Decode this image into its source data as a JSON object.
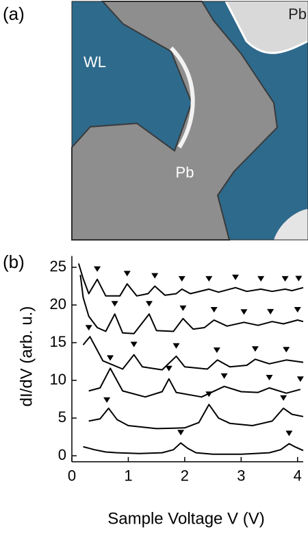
{
  "panel_a": {
    "label": "(a)",
    "texts": [
      "WL",
      "Pb",
      "Pb"
    ]
  },
  "chart_data": {
    "type": "line",
    "panel_label": "(b)",
    "xlabel": "Sample Voltage V (V)",
    "ylabel": "dI/dV (arb. u.)",
    "xlim": [
      0,
      4.1
    ],
    "ylim": [
      -0.8,
      26.5
    ],
    "xticks": [
      0,
      1,
      2,
      3,
      4
    ],
    "yticks": [
      0,
      5,
      10,
      15,
      20,
      25
    ],
    "series": [
      {
        "color": "#000000",
        "x": [
          0.2,
          0.4,
          0.6,
          0.8,
          1.2,
          1.6,
          1.8,
          1.93,
          2.05,
          2.2,
          2.5,
          3.0,
          3.5,
          3.7,
          3.85,
          3.95,
          4.1
        ],
        "values": [
          1.2,
          0.8,
          0.5,
          0.4,
          0.3,
          0.4,
          0.8,
          1.7,
          1.0,
          0.4,
          0.2,
          0.2,
          0.4,
          0.8,
          1.6,
          1.2,
          0.7
        ],
        "peaks": [
          1.93,
          3.85
        ]
      },
      {
        "color": "#000000",
        "x": [
          0.3,
          0.5,
          0.65,
          0.8,
          1.0,
          1.5,
          2.0,
          2.25,
          2.43,
          2.6,
          2.8,
          3.2,
          3.55,
          3.75,
          3.9,
          4.1
        ],
        "values": [
          4.6,
          4.9,
          6.3,
          4.8,
          4.0,
          3.6,
          3.7,
          4.4,
          6.8,
          5.0,
          4.3,
          4.0,
          4.6,
          6.3,
          5.5,
          5.2
        ],
        "peaks": [
          0.62,
          2.43,
          3.75
        ]
      },
      {
        "color": "#000000",
        "x": [
          0.3,
          0.5,
          0.68,
          0.9,
          1.3,
          1.6,
          1.72,
          1.85,
          2.3,
          2.7,
          3.0,
          3.3,
          3.5,
          3.8,
          4.05
        ],
        "values": [
          8.6,
          9.0,
          11.6,
          8.6,
          7.8,
          8.5,
          10.2,
          8.4,
          7.8,
          9.2,
          8.5,
          8.4,
          9.0,
          8.3,
          8.8
        ],
        "peaks": [
          0.68,
          1.72,
          2.7,
          3.5,
          4.05
        ]
      },
      {
        "color": "#000000",
        "x": [
          0.2,
          0.32,
          0.55,
          0.9,
          1.1,
          1.25,
          1.6,
          1.85,
          2.0,
          2.4,
          2.58,
          2.8,
          3.1,
          3.25,
          3.5,
          3.8,
          4.1
        ],
        "values": [
          14.7,
          15.8,
          12.6,
          11.5,
          13.4,
          11.8,
          11.4,
          13.2,
          11.8,
          11.5,
          12.7,
          11.8,
          12.0,
          12.8,
          12.2,
          12.7,
          12.4
        ],
        "peaks": [
          0.3,
          1.1,
          1.85,
          2.57,
          3.25,
          3.8
        ]
      },
      {
        "color": "#000000",
        "x": [
          0.15,
          0.2,
          0.3,
          0.45,
          0.6,
          0.76,
          0.9,
          1.1,
          1.37,
          1.5,
          1.8,
          1.97,
          2.15,
          2.35,
          2.52,
          2.75,
          3.05,
          3.3,
          3.55,
          3.75,
          4.0,
          4.1
        ],
        "values": [
          24.0,
          21.0,
          18.5,
          17.0,
          16.5,
          18.8,
          16.3,
          16.2,
          18.8,
          16.6,
          16.5,
          18.2,
          16.8,
          17.0,
          18.0,
          17.2,
          17.7,
          17.3,
          17.8,
          17.5,
          18.0,
          17.8
        ],
        "peaks": [
          0.76,
          1.37,
          1.97,
          2.52,
          3.05,
          3.52,
          4.0
        ]
      },
      {
        "color": "#000000",
        "x": [
          0.12,
          0.2,
          0.3,
          0.45,
          0.6,
          0.85,
          0.98,
          1.15,
          1.35,
          1.47,
          1.65,
          1.85,
          1.95,
          2.1,
          2.43,
          2.6,
          2.9,
          3.1,
          3.35,
          3.55,
          3.78,
          3.9,
          4.1
        ],
        "values": [
          25.5,
          23.5,
          21.5,
          23.4,
          21.2,
          21.2,
          22.8,
          21.2,
          21.5,
          22.5,
          21.3,
          21.5,
          22.1,
          21.5,
          22.1,
          21.7,
          22.3,
          21.8,
          22.1,
          21.8,
          22.1,
          21.9,
          22.3
        ],
        "peaks": [
          0.45,
          0.98,
          1.47,
          1.95,
          2.43,
          2.9,
          3.35,
          3.78,
          4.02
        ]
      }
    ]
  }
}
